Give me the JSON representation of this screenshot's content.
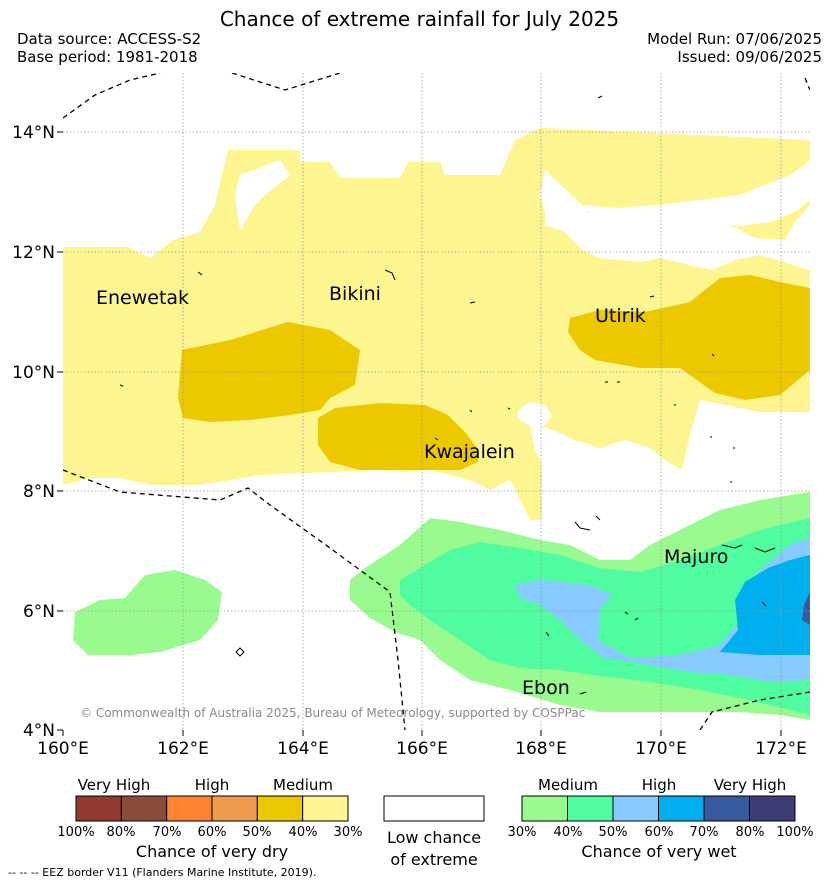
{
  "header": {
    "title": "Chance of extreme rainfall for July 2025",
    "data_source": "Data source: ACCESS-S2",
    "base_period": "Base period: 1981-2018",
    "model_run": "Model Run: 07/06/2025",
    "issued": "Issued: 09/06/2025"
  },
  "map": {
    "lon_labels": [
      "160°E",
      "162°E",
      "164°E",
      "166°E",
      "168°E",
      "170°E",
      "172°E"
    ],
    "lat_labels": [
      "4°N",
      "6°N",
      "8°N",
      "10°N",
      "12°N",
      "14°N"
    ],
    "places": [
      "Enewetak",
      "Bikini",
      "Utirik",
      "Kwajalein",
      "Majuro",
      "Ebon"
    ],
    "credit": "© Commonwealth of Australia 2025, Bureau of Meteorology, supported by COSPPac",
    "colors": {
      "dry_medium_light": "#fdf58f",
      "dry_medium_dark": "#ebc800",
      "wet_medium_light": "#98fa8f",
      "wet_medium_dark": "#4ffca0",
      "wet_high_light": "#86caff",
      "wet_high_dark": "#00b0ee",
      "wet_very_high": "#375a9e"
    }
  },
  "legend": {
    "dry": {
      "categories": [
        "Very High",
        "High",
        "Medium"
      ],
      "ticks": [
        "100%",
        "80%",
        "70%",
        "60%",
        "50%",
        "40%",
        "30%"
      ],
      "colors": [
        "#903a30",
        "#8b4b3b",
        "#ff8331",
        "#ec9b4f",
        "#ebc800",
        "#fdf58f"
      ],
      "title": "Chance of very dry"
    },
    "none": {
      "line1": "Low chance",
      "line2": "of extreme",
      "color": "#ffffff"
    },
    "wet": {
      "categories": [
        "Medium",
        "High",
        "Very High"
      ],
      "ticks": [
        "30%",
        "40%",
        "50%",
        "60%",
        "70%",
        "80%",
        "100%"
      ],
      "colors": [
        "#98fa8f",
        "#4ffca0",
        "#86caff",
        "#00b0ee",
        "#375a9e",
        "#3d3d78"
      ],
      "title": "Chance of very wet"
    },
    "eez_note": "--  --  -- EEZ border V11 (Flanders Marine Institute, 2019)."
  }
}
